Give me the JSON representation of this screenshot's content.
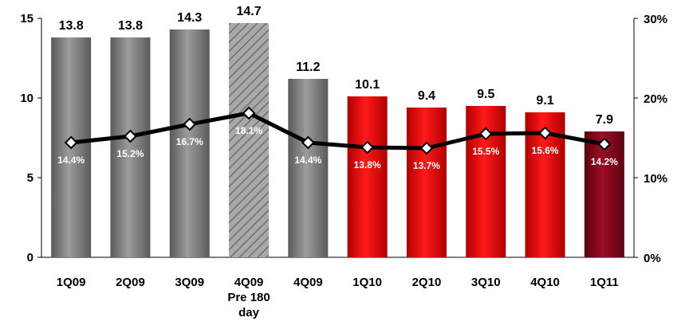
{
  "chart_data": {
    "type": "bar+line",
    "categories": [
      "1Q09",
      "2Q09",
      "3Q09",
      "4Q09\nPre 180\nday",
      "4Q09",
      "1Q10",
      "2Q10",
      "3Q10",
      "4Q10",
      "1Q11"
    ],
    "series": [
      {
        "axis": "left",
        "type": "bar",
        "values": [
          13.8,
          13.8,
          14.3,
          14.7,
          11.2,
          10.1,
          9.4,
          9.5,
          9.1,
          7.9
        ],
        "value_labels": [
          "13.8",
          "13.8",
          "14.3",
          "14.7",
          "11.2",
          "10.1",
          "9.4",
          "9.5",
          "9.1",
          "7.9"
        ],
        "colors": [
          "#808080",
          "#808080",
          "#808080",
          "#9a9a9a",
          "#808080",
          "#e00000",
          "#e00000",
          "#e00000",
          "#e00000",
          "#8c0a1e"
        ],
        "hatched": [
          false,
          false,
          false,
          true,
          false,
          false,
          false,
          false,
          false,
          false
        ]
      },
      {
        "axis": "right",
        "type": "line",
        "values": [
          14.4,
          15.2,
          16.7,
          18.1,
          14.4,
          13.8,
          13.7,
          15.5,
          15.6,
          14.2
        ],
        "value_labels": [
          "14.4%",
          "15.2%",
          "16.7%",
          "18.1%",
          "14.4%",
          "13.8%",
          "13.7%",
          "15.5%",
          "15.6%",
          "14.2%"
        ],
        "color": "#000000"
      }
    ],
    "y_left": {
      "min": 0,
      "max": 15,
      "ticks": [
        0,
        5,
        10,
        15
      ],
      "tick_labels": [
        "0",
        "5",
        "10",
        "15"
      ]
    },
    "y_right": {
      "min": 0,
      "max": 30,
      "ticks": [
        0,
        10,
        20,
        30
      ],
      "tick_labels": [
        "0%",
        "10%",
        "20%",
        "30%"
      ]
    },
    "grid": false,
    "legend": "none"
  }
}
